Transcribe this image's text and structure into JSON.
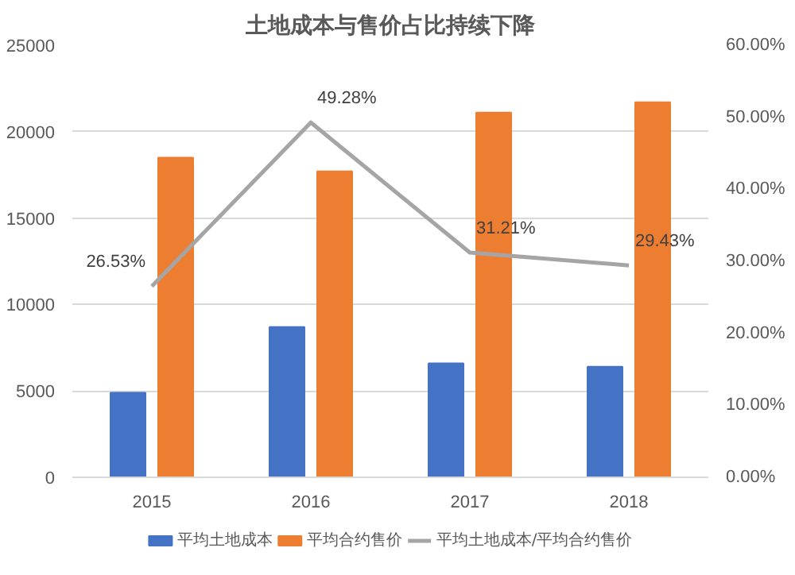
{
  "chart_data": {
    "type": "bar",
    "title": "土地成本与售价占比持续下降",
    "categories": [
      "2015",
      "2016",
      "2017",
      "2018"
    ],
    "series": [
      {
        "name": "平均土地成本",
        "color": "#4472c4",
        "values": [
          4900,
          8700,
          6600,
          6400
        ]
      },
      {
        "name": "平均合约售价",
        "color": "#ed7d31",
        "values": [
          18500,
          17700,
          21100,
          21700
        ]
      },
      {
        "name": "平均土地成本/平均合约售价",
        "type": "line",
        "axis": "y2",
        "color": "#a5a5a5",
        "values": [
          26.53,
          49.28,
          31.21,
          29.43
        ],
        "value_labels": [
          "26.53%",
          "49.28%",
          "31.21%",
          "29.43%"
        ]
      }
    ],
    "ylim": [
      0,
      25000
    ],
    "yticks": [
      0,
      5000,
      10000,
      15000,
      20000,
      25000
    ],
    "y2lim": [
      0,
      60
    ],
    "y2ticks": [
      {
        "value": 0,
        "label": "0.00%"
      },
      {
        "value": 10,
        "label": "10.00%"
      },
      {
        "value": 20,
        "label": "20.00%"
      },
      {
        "value": 30,
        "label": "30.00%"
      },
      {
        "value": 40,
        "label": "40.00%"
      },
      {
        "value": 50,
        "label": "50.00%"
      },
      {
        "value": 60,
        "label": "60.00%"
      }
    ],
    "grid": "y",
    "legend": "bottom"
  }
}
